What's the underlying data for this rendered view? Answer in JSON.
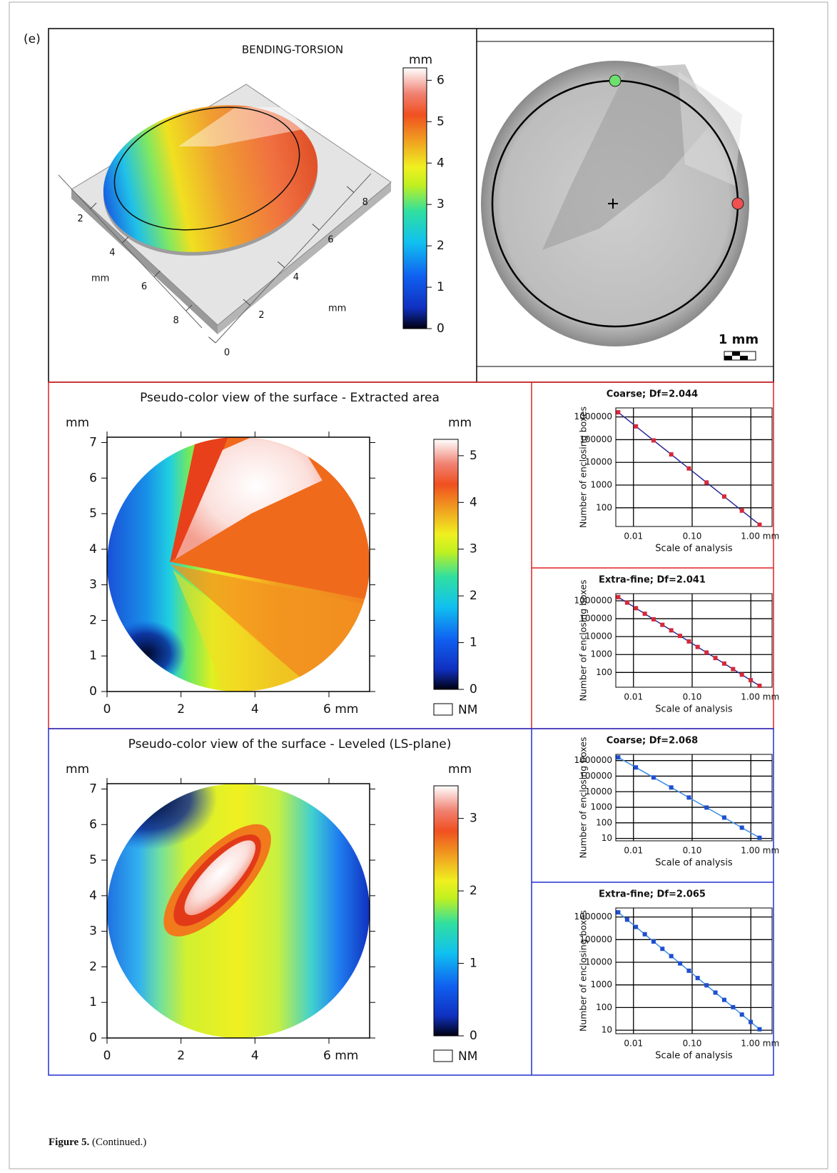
{
  "panel_label": "(e)",
  "caption": {
    "label": "Figure 5.",
    "text": "(Continued.)"
  },
  "view_3d": {
    "title": "BENDING-TORSION",
    "colorbar": {
      "unit": "mm",
      "lim": [
        0,
        6.3
      ],
      "ticks": [
        0,
        1,
        2,
        3,
        4,
        5,
        6
      ]
    },
    "axis_left": {
      "unit": "mm",
      "lim": [
        0,
        9
      ],
      "ticks": [
        2,
        4,
        6,
        8
      ]
    },
    "axis_right": {
      "unit": "mm",
      "lim": [
        0,
        9
      ],
      "ticks": [
        0,
        2,
        4,
        6,
        8
      ]
    }
  },
  "view_top": {
    "scale_bar": "1 mm"
  },
  "maps": [
    {
      "title": "Pseudo-color view of the surface - Extracted area",
      "y_unit": "mm",
      "xlim": [
        0,
        7.1
      ],
      "ylim": [
        0,
        7.15
      ],
      "xticks": [
        0,
        2,
        4,
        {
          "value": 6,
          "label": "6 mm"
        }
      ],
      "yticks": [
        0,
        1,
        2,
        3,
        4,
        5,
        6,
        7
      ],
      "colorbar": {
        "unit": "mm",
        "lim": [
          0,
          5.35
        ],
        "ticks": [
          0,
          1,
          2,
          3,
          4,
          5
        ],
        "no_measure": "NM"
      }
    },
    {
      "title": "Pseudo-color view of the surface - Leveled (LS-plane)",
      "y_unit": "mm",
      "xlim": [
        0,
        7.1
      ],
      "ylim": [
        0,
        7.15
      ],
      "xticks": [
        0,
        2,
        4,
        {
          "value": 6,
          "label": "6 mm"
        }
      ],
      "yticks": [
        0,
        1,
        2,
        3,
        4,
        5,
        6,
        7
      ],
      "colorbar": {
        "unit": "mm",
        "lim": [
          0,
          3.45
        ],
        "ticks": [
          0,
          1,
          2,
          3
        ],
        "no_measure": "NM"
      }
    }
  ],
  "chart_data": [
    {
      "type": "line",
      "title": "Coarse; Df=2.044",
      "x_label": "Scale of analysis",
      "y_label": "Number of enclosing boxes",
      "xscale": "log",
      "yscale": "log",
      "grid": true,
      "xlim": [
        0.005,
        2.3
      ],
      "ylim": [
        15,
        2500000
      ],
      "xticks": [
        0.01,
        {
          "value": 0.1,
          "label": "0.10"
        },
        {
          "value": 1,
          "label": "1.00 mm"
        }
      ],
      "yticks": [
        100,
        1000,
        10000,
        100000,
        1000000
      ],
      "color": "#d42a3a",
      "line_color": "#2a2a9a",
      "x": [
        0.0055,
        0.011,
        0.022,
        0.044,
        0.088,
        0.176,
        0.352,
        0.704,
        1.408
      ],
      "values": [
        1600000,
        385000,
        92800,
        22400,
        5390,
        1300,
        313,
        75,
        18
      ]
    },
    {
      "type": "line",
      "title": "Extra-fine; Df=2.041",
      "x_label": "Scale of analysis",
      "y_label": "Number of enclosing boxes",
      "xscale": "log",
      "yscale": "log",
      "grid": true,
      "xlim": [
        0.005,
        2.3
      ],
      "ylim": [
        15,
        2500000
      ],
      "xticks": [
        0.01,
        {
          "value": 0.1,
          "label": "0.10"
        },
        {
          "value": 1,
          "label": "1.00 mm"
        }
      ],
      "yticks": [
        100,
        1000,
        10000,
        100000,
        1000000
      ],
      "color": "#d42a3a",
      "line_color": "#2a2a9a",
      "x": [
        0.0055,
        0.0078,
        0.011,
        0.0156,
        0.022,
        0.0311,
        0.044,
        0.0622,
        0.088,
        0.124,
        0.176,
        0.249,
        0.352,
        0.498,
        0.704,
        0.996,
        1.408
      ],
      "values": [
        1600000,
        786000,
        385000,
        189000,
        92800,
        45500,
        22400,
        11000,
        5390,
        2650,
        1300,
        638,
        313,
        154,
        75,
        37,
        18
      ]
    },
    {
      "type": "line",
      "title": "Coarse; Df=2.068",
      "x_label": "Scale of analysis",
      "y_label": "Number of enclosing boxes",
      "xscale": "log",
      "yscale": "log",
      "grid": true,
      "xlim": [
        0.005,
        2.3
      ],
      "ylim": [
        7,
        2500000
      ],
      "xticks": [
        0.01,
        {
          "value": 0.1,
          "label": "0.10"
        },
        {
          "value": 1,
          "label": "1.00 mm"
        }
      ],
      "yticks": [
        10,
        100,
        1000,
        10000,
        100000,
        1000000
      ],
      "color": "#1f4fd0",
      "line_color": "#3a8ee8",
      "x": [
        0.0055,
        0.011,
        0.022,
        0.044,
        0.088,
        0.176,
        0.352,
        0.704,
        1.408
      ],
      "values": [
        1600000,
        363000,
        82300,
        18700,
        4230,
        960,
        218,
        49,
        11
      ]
    },
    {
      "type": "line",
      "title": "Extra-fine; Df=2.065",
      "x_label": "Scale of analysis",
      "y_label": "Number of enclosing boxes",
      "xscale": "log",
      "yscale": "log",
      "grid": true,
      "xlim": [
        0.005,
        2.3
      ],
      "ylim": [
        7,
        2500000
      ],
      "xticks": [
        0.01,
        {
          "value": 0.1,
          "label": "0.10"
        },
        {
          "value": 1,
          "label": "1.00 mm"
        }
      ],
      "yticks": [
        10,
        100,
        1000,
        10000,
        100000,
        1000000
      ],
      "color": "#1f4fd0",
      "line_color": "#3a8ee8",
      "x": [
        0.0055,
        0.0078,
        0.011,
        0.0156,
        0.022,
        0.0311,
        0.044,
        0.0622,
        0.088,
        0.124,
        0.176,
        0.249,
        0.352,
        0.498,
        0.704,
        0.996,
        1.408
      ],
      "values": [
        1600000,
        762000,
        363000,
        173000,
        82300,
        39200,
        18700,
        8880,
        4230,
        2010,
        960,
        457,
        218,
        104,
        49,
        23,
        11
      ]
    }
  ]
}
